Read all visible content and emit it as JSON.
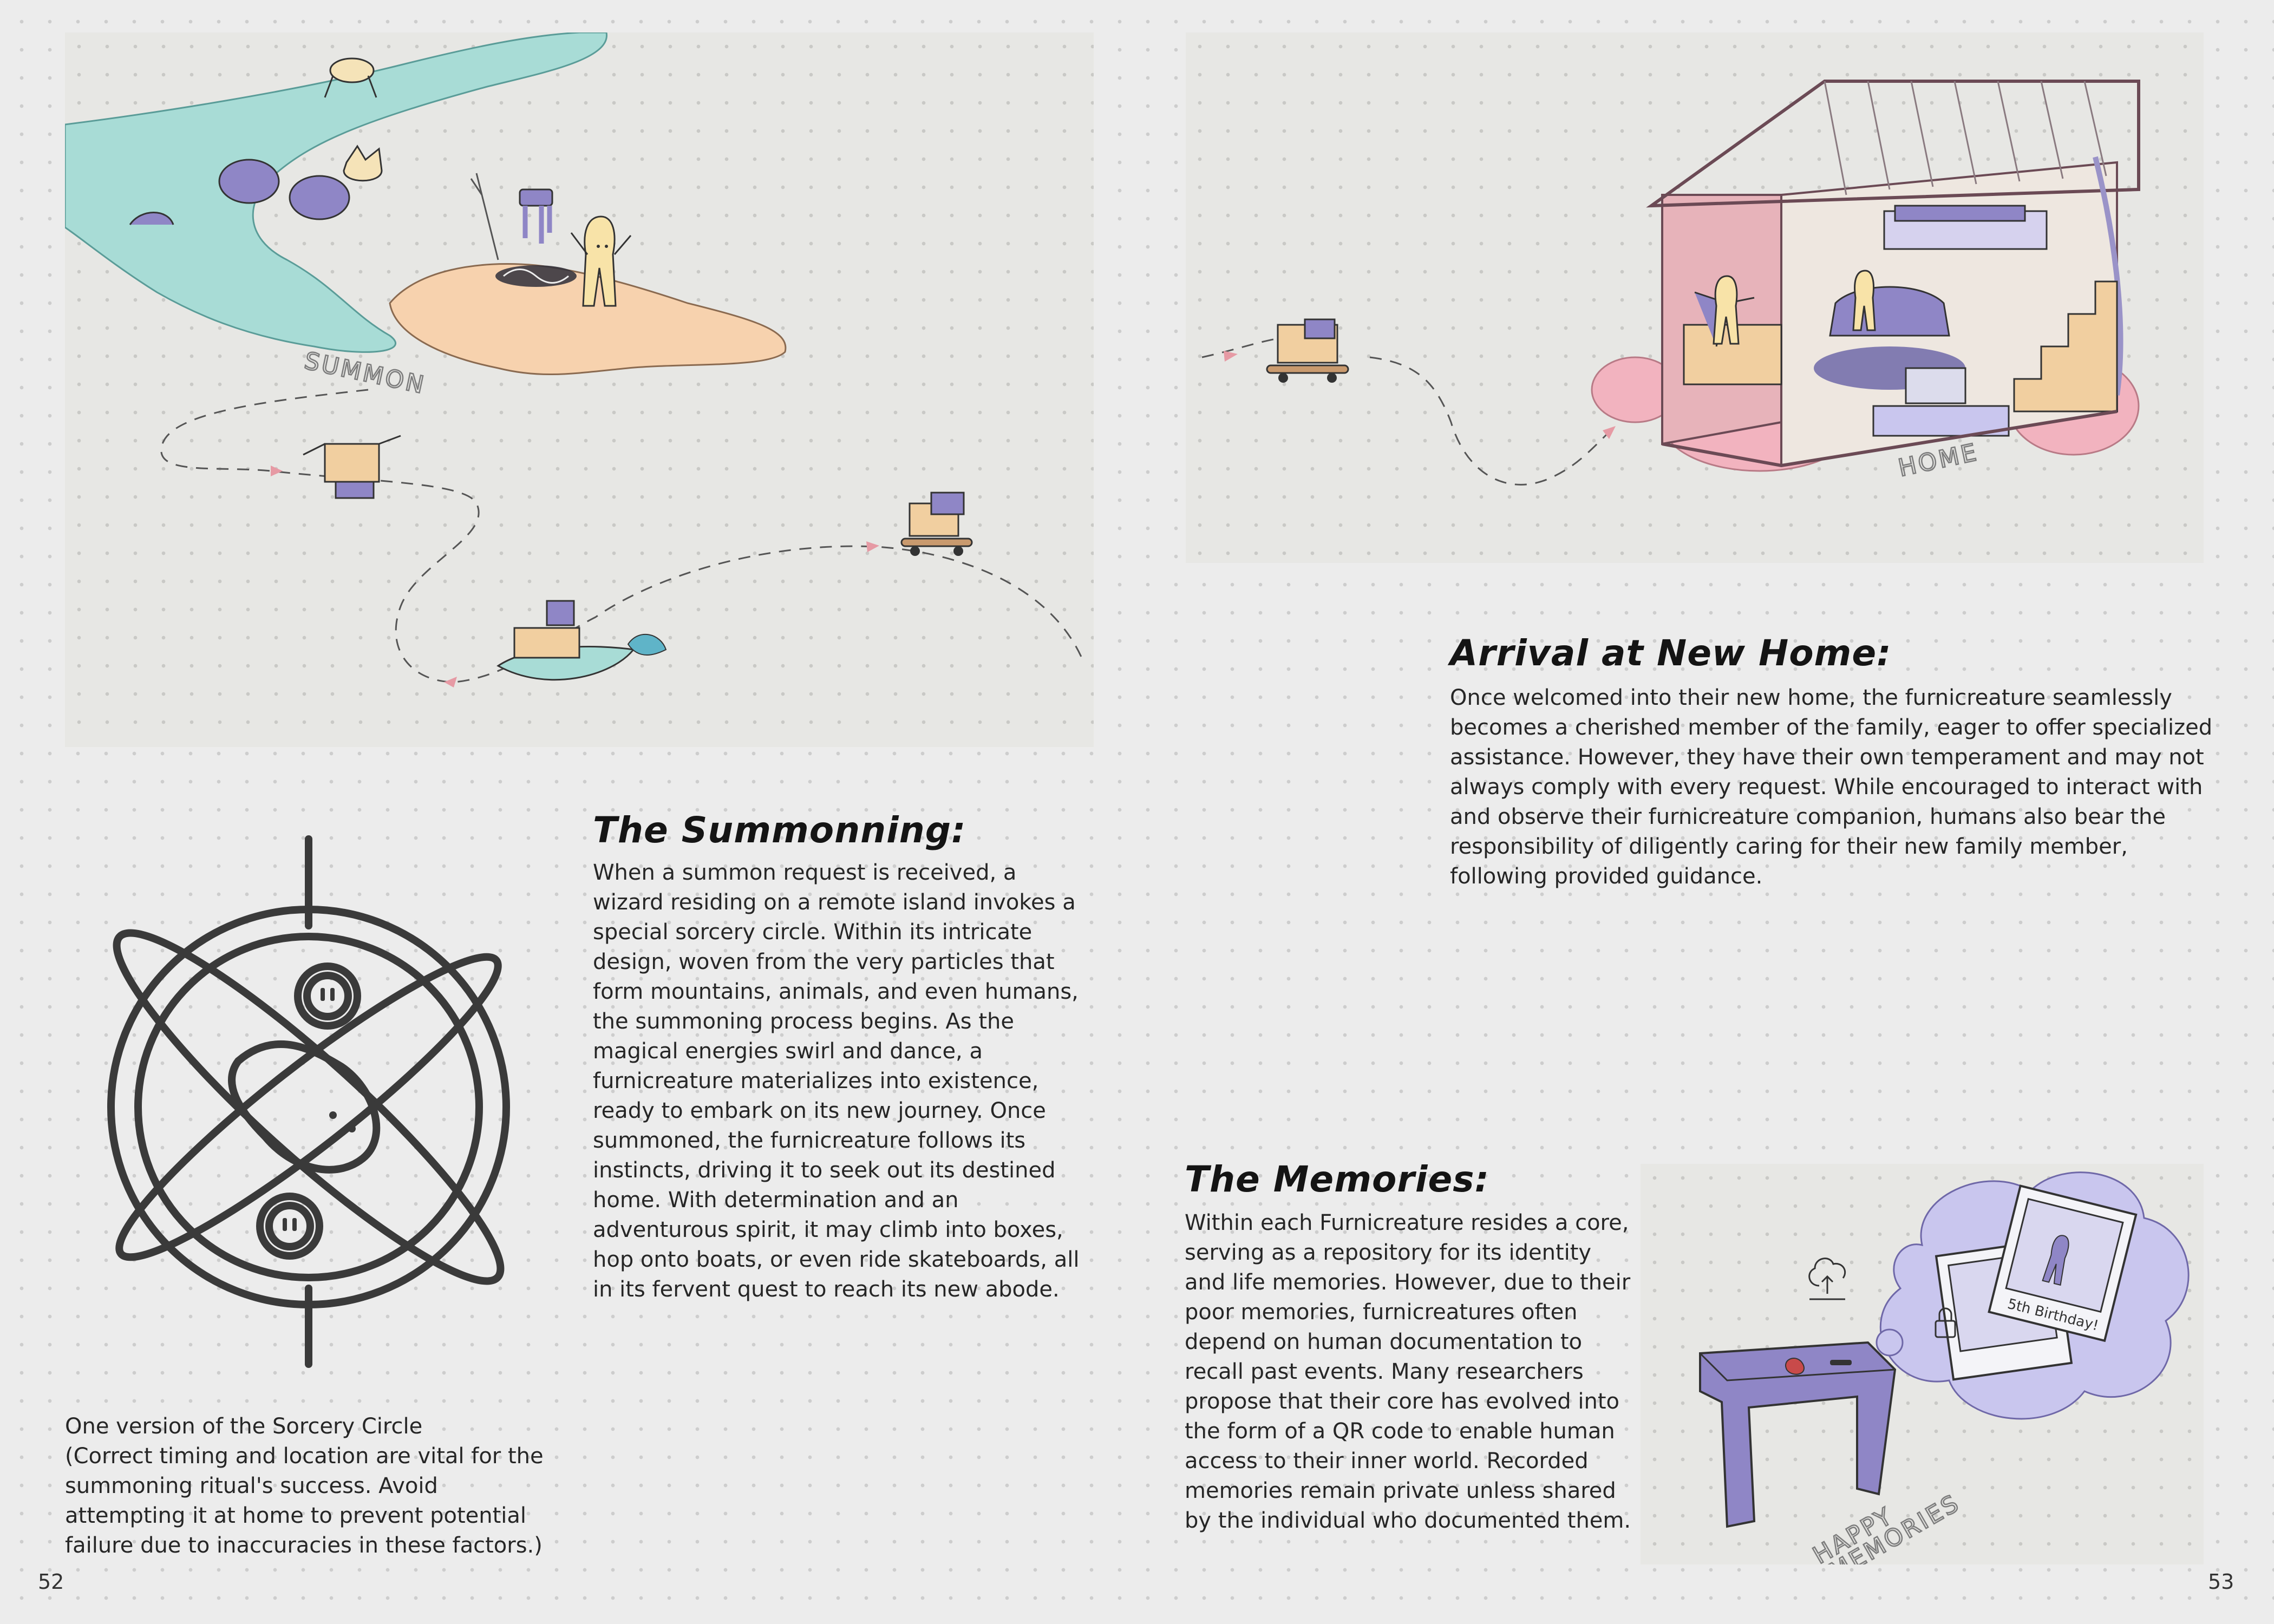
{
  "spread": {
    "left_page_number": "52",
    "right_page_number": "53"
  },
  "illustrations": {
    "journey_map_label": "SUMMON",
    "home_label": "HOME",
    "memories_label_line1": "HAPPY",
    "memories_label_line2": "MEMORIES",
    "photo_caption": "5th Birthday!"
  },
  "sections": {
    "summoning": {
      "heading": "The Summonning:",
      "body": "When a summon request is received, a wizard residing on a remote island invokes a special sorcery circle. Within its intricate design, woven from the very particles that form mountains, animals, and even humans, the summoning process begins. As the magical energies swirl and dance, a furnicreature materializes into existence, ready to embark on its new journey. Once summoned, the furnicreature follows its instincts, driving it to seek out its destined home. With determination and an adventurous spirit, it may climb into boxes, hop onto boats, or even ride skateboards, all in its fervent quest to reach its new abode."
    },
    "arrival": {
      "heading": "Arrival at New Home:",
      "body": "Once welcomed into their new home, the furnicreature seamlessly becomes a cherished member of the family, eager to offer specialized assistance. However, they have their own temperament and may not always comply with every request. While encouraged to interact with and observe their furnicreature companion, humans also bear the responsibility of diligently caring for their new family member, following provided guidance."
    },
    "memories": {
      "heading": "The Memories:",
      "body": "Within each Furnicreature resides a core, serving as a repository for its identity and life memories. However, due to their poor memories, furnicreatures often depend on human documentation to recall past events. Many researchers propose that their core has evolved into the form of a QR code to enable human access to their inner world. Recorded memories remain private unless shared by the individual who documented them."
    },
    "sorcery_caption": {
      "title": "One version of the Sorcery Circle",
      "note": "(Correct timing and location are vital for the summoning ritual's success. Avoid attempting it at home to prevent potential failure due to inaccuracies in these factors.)"
    }
  },
  "colors": {
    "river": "#a6dcd6",
    "island": "#f7d2ae",
    "furniture_purple": "#8f86c6",
    "blossom_pink": "#f2b3bf",
    "wood_tan": "#e8c9a0",
    "thought_bubble": "#c9c6ee",
    "ink": "#333333"
  }
}
